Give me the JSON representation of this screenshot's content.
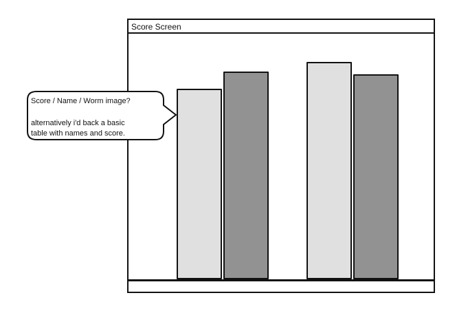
{
  "window": {
    "title": "Score Screen"
  },
  "chart_data": {
    "type": "bar",
    "title": "",
    "xlabel": "",
    "ylabel": "",
    "categories": [
      "",
      ""
    ],
    "series": [
      {
        "values": [
          78,
          89
        ]
      },
      {
        "values": [
          85,
          84
        ]
      }
    ],
    "ylim": [
      0,
      100
    ],
    "colors": [
      "#e0e0e0",
      "#929292"
    ]
  },
  "callout": {
    "line1": "Score / Name / Worm image?",
    "line2": "alternatively i'd back a basic",
    "line3": "table with names and score."
  }
}
